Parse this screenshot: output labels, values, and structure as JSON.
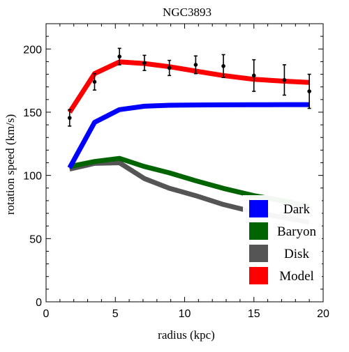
{
  "chart_data": {
    "type": "line",
    "title": "NGC3893",
    "xlabel": "radius (kpc)",
    "ylabel": "rotation speed (km/s)",
    "xlim": [
      0,
      20
    ],
    "ylim": [
      0,
      220
    ],
    "xticks": [
      0,
      5,
      10,
      15,
      20
    ],
    "yticks": [
      0,
      50,
      100,
      150,
      200
    ],
    "grid": false,
    "legend_position": "bottom-right",
    "series": [
      {
        "name": "Dark",
        "color": "#0000ff",
        "x": [
          1.7,
          3.5,
          5.3,
          7.1,
          8.9,
          10.8,
          12.8,
          15.0,
          17.2,
          19.0
        ],
        "y": [
          106,
          142,
          152,
          154.7,
          155.5,
          155.7,
          155.8,
          155.9,
          156.0,
          156.0
        ]
      },
      {
        "name": "Baryon",
        "color": "#006400",
        "x": [
          1.7,
          3.5,
          5.3,
          7.1,
          8.9,
          10.8,
          12.8,
          15.0,
          17.2,
          19.0
        ],
        "y": [
          107,
          111,
          113.5,
          107,
          102,
          95.8,
          89.7,
          84,
          79.7,
          75.5
        ]
      },
      {
        "name": "Disk",
        "color": "#555555",
        "x": [
          1.7,
          3.5,
          5.3,
          7.1,
          8.9,
          10.8,
          12.8,
          15.0,
          17.2,
          19.0
        ],
        "y": [
          105,
          109.5,
          110,
          97.5,
          89.8,
          84,
          77,
          71,
          66.5,
          63
        ]
      },
      {
        "name": "Model",
        "color": "#ff0000",
        "x": [
          1.7,
          3.5,
          5.3,
          7.1,
          8.9,
          10.8,
          12.8,
          15.0,
          17.2,
          19.0
        ],
        "y": [
          150,
          180.5,
          189.8,
          188.5,
          186,
          182.5,
          179,
          176,
          174.5,
          173.5
        ]
      }
    ],
    "observations": {
      "x": [
        1.7,
        3.5,
        5.3,
        7.1,
        8.9,
        10.8,
        12.8,
        15.0,
        17.2,
        19.0
      ],
      "y": [
        145.5,
        174,
        194,
        189,
        185,
        187.5,
        186.5,
        179,
        175.5,
        166.5
      ],
      "err": [
        6.5,
        6.5,
        6.5,
        6,
        6,
        7,
        9,
        12.5,
        12,
        13.5
      ]
    }
  }
}
